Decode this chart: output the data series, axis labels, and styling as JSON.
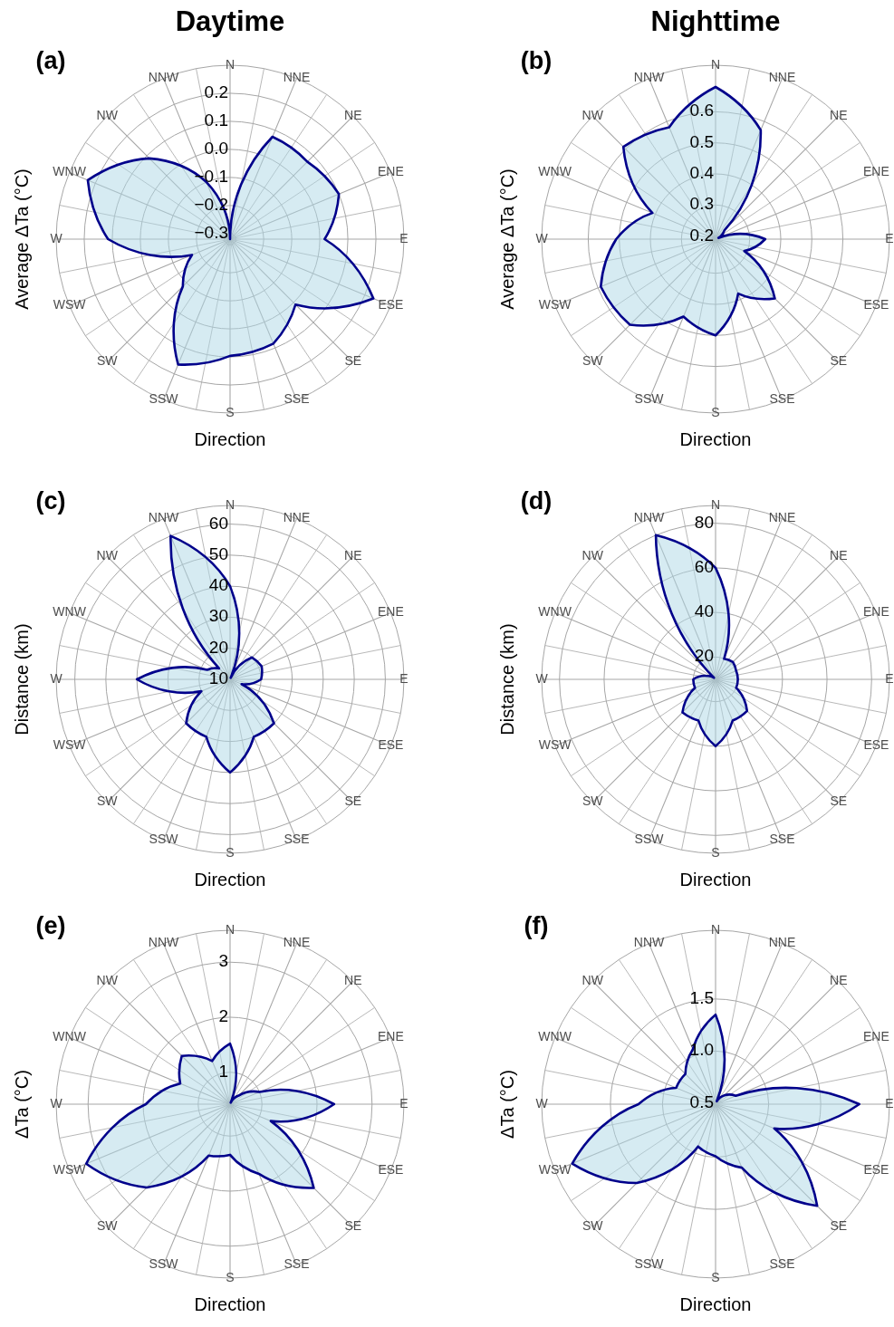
{
  "chart_data": [
    {
      "type": "radar",
      "title": "Daytime",
      "subtitle": "(a)",
      "ylabel": "Average ΔTa (°C)",
      "xlabel": "Direction",
      "grid": true,
      "categories": [
        "N",
        "NNE",
        "NE",
        "ENE",
        "E",
        "ESE",
        "SE",
        "SSE",
        "S",
        "SSW",
        "SW",
        "WSW",
        "W",
        "WNW",
        "NW",
        "NNW"
      ],
      "series": [
        {
          "color": "#00008b",
          "values": [
            -0.32,
            0.075,
            0.07,
            0.1,
            0.017,
            0.233,
            0.01,
            0.083,
            0.096,
            0.164,
            -0.082,
            -0.173,
            0.115,
            0.229,
            0.087,
            -0.1
          ]
        }
      ],
      "ylim": [
        -0.32,
        0.3
      ],
      "yticks": [
        {
          "value": -0.3,
          "label": "−0.3"
        },
        {
          "value": -0.2,
          "label": "−0.2"
        },
        {
          "value": -0.1,
          "label": "−0.1"
        },
        {
          "value": 0,
          "label": "0.0"
        },
        0.1,
        0.2
      ]
    },
    {
      "type": "radar",
      "title": "Nighttime",
      "subtitle": "(b)",
      "ylabel": "Average ΔTa (°C)",
      "xlabel": "Direction",
      "grid": true,
      "categories": [
        "N",
        "NNE",
        "NE",
        "ENE",
        "E",
        "ESE",
        "SE",
        "SSE",
        "S",
        "SSW",
        "SW",
        "WSW",
        "W",
        "WNW",
        "NW",
        "NNW"
      ],
      "series": [
        {
          "color": "#00008b",
          "values": [
            0.68,
            0.57,
            0.23,
            0.2,
            0.35,
            0.29,
            0.46,
            0.38,
            0.5,
            0.46,
            0.58,
            0.59,
            0.51,
            0.41,
            0.61,
            0.58
          ]
        }
      ],
      "ylim": [
        0.19,
        0.75
      ],
      "yticks": [
        0.2,
        0.3,
        0.4,
        0.5,
        0.6
      ]
    },
    {
      "type": "radar",
      "subtitle": "(c)",
      "ylabel": "Distance (km)",
      "xlabel": "Direction",
      "grid": true,
      "categories": [
        "N",
        "NNE",
        "NE",
        "ENE",
        "E",
        "ESE",
        "SE",
        "SSE",
        "S",
        "SSW",
        "SW",
        "WSW",
        "W",
        "WNW",
        "NW",
        "NNW"
      ],
      "series": [
        {
          "color": "#00008b",
          "values": [
            40,
            10.5,
            20,
            21,
            20,
            14,
            30,
            30,
            40,
            30,
            30,
            20,
            40,
            18,
            15,
            60
          ]
        }
      ],
      "ylim": [
        10,
        66
      ],
      "yticks": [
        10,
        20,
        30,
        40,
        50,
        60
      ]
    },
    {
      "type": "radar",
      "subtitle": "(d)",
      "ylabel": "Distance (km)",
      "xlabel": "Direction",
      "grid": true,
      "categories": [
        "N",
        "NNE",
        "NE",
        "ENE",
        "E",
        "ESE",
        "SE",
        "SSE",
        "S",
        "SSW",
        "SW",
        "WSW",
        "W",
        "WNW",
        "NW",
        "NNW"
      ],
      "series": [
        {
          "color": "#00008b",
          "values": [
            60,
            20,
            21,
            20,
            20,
            20,
            30,
            30,
            40,
            30,
            31,
            20,
            20,
            14,
            11,
            80
          ]
        }
      ],
      "ylim": [
        10,
        88
      ],
      "yticks": [
        20,
        40,
        60,
        80
      ]
    },
    {
      "type": "radar",
      "subtitle": "(e)",
      "ylabel": "ΔTa (°C)",
      "xlabel": "Direction",
      "grid": true,
      "categories": [
        "N",
        "NNE",
        "NE",
        "ENE",
        "E",
        "ESE",
        "SE",
        "SSE",
        "S",
        "SSW",
        "SW",
        "WSW",
        "W",
        "WNW",
        "NW",
        "NNW"
      ],
      "series": [
        {
          "color": "#00008b",
          "values": [
            1.52,
            0.45,
            0.64,
            1.0,
            2.31,
            1.22,
            2.57,
            1.79,
            1.34,
            1.43,
            2.56,
            3.25,
            1.95,
            1.4,
            1.66,
            1.27
          ]
        }
      ],
      "ylim": [
        0.42,
        3.58
      ],
      "yticks": [
        1,
        2,
        3
      ]
    },
    {
      "type": "radar",
      "subtitle": "(f)",
      "ylabel": "ΔTa (°C)",
      "xlabel": "Direction",
      "grid": true,
      "categories": [
        "N",
        "NNE",
        "NE",
        "ENE",
        "E",
        "ESE",
        "SE",
        "SSE",
        "S",
        "SSW",
        "SW",
        "WSW",
        "W",
        "WNW",
        "NW",
        "NNW"
      ],
      "series": [
        {
          "color": "#00008b",
          "values": [
            1.35,
            0.52,
            0.61,
            0.7,
            1.87,
            1.1,
            1.87,
            1.15,
            0.99,
            0.93,
            1.56,
            1.98,
            1.23,
            0.9,
            0.9,
            1.06
          ]
        }
      ],
      "ylim": [
        0.49,
        2.16
      ],
      "yticks": [
        0.5,
        {
          "value": 1,
          "label": "1.0"
        },
        1.5
      ]
    }
  ]
}
